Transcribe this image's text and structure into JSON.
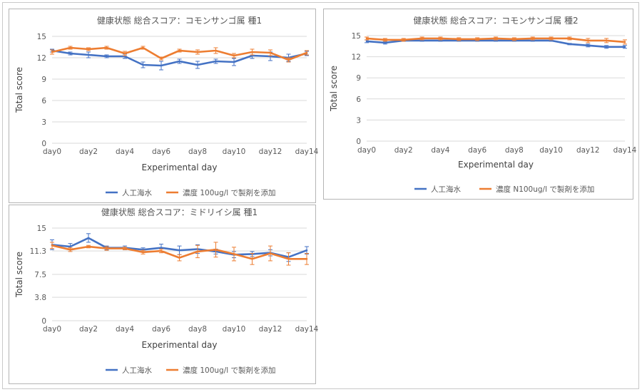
{
  "chart_data": [
    {
      "type": "line",
      "title": "健康状態 総合スコア：コモンサンゴ属 種1",
      "xlabel": "Experimental day",
      "ylabel": "Total score",
      "x": [
        "day0",
        "day1",
        "day2",
        "day3",
        "day4",
        "day5",
        "day6",
        "day7",
        "day8",
        "day9",
        "day10",
        "day11",
        "day12",
        "day13",
        "day14"
      ],
      "x_tick_labels": [
        "day0",
        "day2",
        "day4",
        "day6",
        "day8",
        "day10",
        "day12",
        "day14"
      ],
      "ylim": [
        0,
        15
      ],
      "y_ticks": [
        "0",
        "3",
        "6",
        "9",
        "12",
        "15"
      ],
      "grid": true,
      "legend_position": "bottom",
      "series": [
        {
          "name": "人工海水",
          "color": "#4472c4",
          "values": [
            13.0,
            12.6,
            12.4,
            12.2,
            12.2,
            11.0,
            10.9,
            11.5,
            11.0,
            11.5,
            11.4,
            12.3,
            12.2,
            12.0,
            12.6
          ],
          "error": [
            0.2,
            0.2,
            0.4,
            0.2,
            0.3,
            0.4,
            0.6,
            0.3,
            0.5,
            0.3,
            0.5,
            0.4,
            0.6,
            0.5,
            0.3
          ]
        },
        {
          "name": "濃度 100ug/l で製剤を添加",
          "color": "#ed7d31",
          "values": [
            12.8,
            13.4,
            13.2,
            13.4,
            12.6,
            13.4,
            11.9,
            13.0,
            12.8,
            13.0,
            12.3,
            12.8,
            12.7,
            11.7,
            12.7
          ],
          "error": [
            0.3,
            0.2,
            0.2,
            0.2,
            0.3,
            0.2,
            0.2,
            0.2,
            0.3,
            0.4,
            0.3,
            0.4,
            0.4,
            0.3,
            0.3
          ]
        }
      ]
    },
    {
      "type": "line",
      "title": "健康状態 総合スコア：コモンサンゴ属 種2",
      "xlabel": "Experimental day",
      "ylabel": "Total score",
      "x": [
        "day0",
        "day1",
        "day2",
        "day3",
        "day4",
        "day5",
        "day6",
        "day7",
        "day8",
        "day9",
        "day10",
        "day11",
        "day12",
        "day13",
        "day14"
      ],
      "x_tick_labels": [
        "day0",
        "day2",
        "day4",
        "day6",
        "day8",
        "day10",
        "day12",
        "day14"
      ],
      "ylim": [
        0,
        15
      ],
      "y_ticks": [
        "0",
        "3",
        "6",
        "9",
        "12",
        "15"
      ],
      "grid": true,
      "legend_position": "bottom",
      "series": [
        {
          "name": "人工海水",
          "color": "#4472c4",
          "values": [
            14.2,
            14.0,
            14.3,
            14.3,
            14.3,
            14.3,
            14.3,
            14.3,
            14.3,
            14.3,
            14.3,
            13.8,
            13.6,
            13.4,
            13.4
          ],
          "error": [
            0.2,
            0.2,
            0.1,
            0.1,
            0.1,
            0.1,
            0.1,
            0.1,
            0.1,
            0.1,
            0.1,
            0.1,
            0.2,
            0.2,
            0.2
          ]
        },
        {
          "name": "濃度 N100ug/l で製剤を添加",
          "color": "#ed7d31",
          "values": [
            14.6,
            14.4,
            14.4,
            14.6,
            14.6,
            14.5,
            14.5,
            14.6,
            14.5,
            14.6,
            14.6,
            14.6,
            14.3,
            14.3,
            14.1
          ],
          "error": [
            0.2,
            0.2,
            0.2,
            0.2,
            0.2,
            0.2,
            0.2,
            0.2,
            0.2,
            0.2,
            0.2,
            0.2,
            0.3,
            0.3,
            0.3
          ]
        }
      ]
    },
    {
      "type": "line",
      "title": "健康状態 総合スコア：ミドリイシ属 種1",
      "xlabel": "Experimental day",
      "ylabel": "Total score",
      "x": [
        "day0",
        "day1",
        "day2",
        "day3",
        "day4",
        "day5",
        "day6",
        "day7",
        "day8",
        "day9",
        "day10",
        "day11",
        "day12",
        "day13",
        "day14"
      ],
      "x_tick_labels": [
        "day0",
        "day2",
        "day4",
        "day6",
        "day8",
        "day10",
        "day12",
        "day14"
      ],
      "ylim": [
        0,
        15
      ],
      "y_ticks": [
        "0",
        "3.8",
        "7.5",
        "11.3",
        "15"
      ],
      "grid": true,
      "legend_position": "bottom",
      "series": [
        {
          "name": "人工海水",
          "color": "#4472c4",
          "values": [
            12.3,
            12.0,
            13.4,
            11.8,
            11.8,
            11.5,
            11.8,
            11.4,
            11.6,
            11.2,
            10.7,
            10.8,
            11.0,
            10.3,
            11.4
          ],
          "error": [
            0.8,
            0.5,
            0.7,
            0.3,
            0.3,
            0.3,
            0.6,
            0.7,
            0.7,
            0.4,
            0.5,
            0.4,
            0.5,
            0.7,
            0.6
          ]
        },
        {
          "name": "濃度 100ug/l で製剤を添加",
          "color": "#ed7d31",
          "values": [
            12.2,
            11.5,
            12.0,
            11.7,
            11.7,
            11.1,
            11.3,
            10.2,
            11.2,
            11.5,
            10.8,
            10.0,
            10.9,
            10.0,
            10.0
          ],
          "error": [
            0.5,
            0.3,
            0.2,
            0.3,
            0.2,
            0.3,
            0.3,
            0.5,
            1.0,
            1.2,
            1.1,
            0.9,
            1.2,
            1.0,
            0.9
          ]
        }
      ]
    }
  ]
}
